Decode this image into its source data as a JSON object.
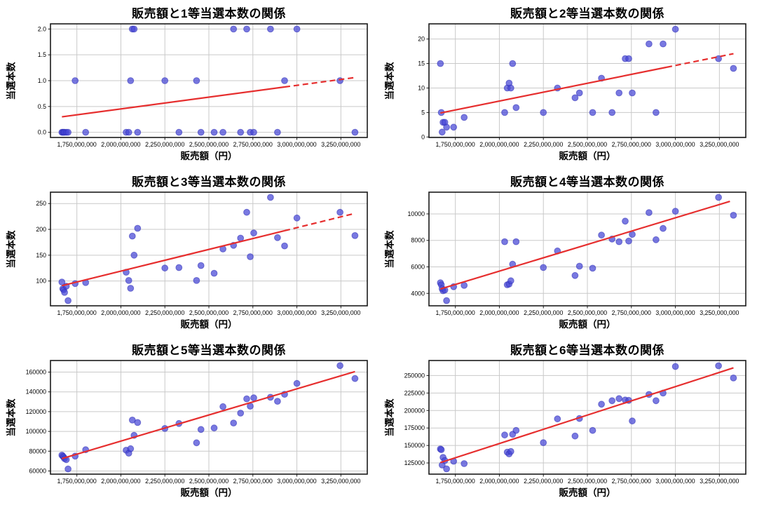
{
  "figure": {
    "rows": 3,
    "columns": 2,
    "background": "#ffffff"
  },
  "style": {
    "point_color": "#4545d6",
    "point_edge_color": "#2c2cb4",
    "point_opacity": 0.72,
    "trend_color": "#e62e2e",
    "grid_color": "#c9c9c9",
    "spine_color": "#1a1a1a",
    "text_color": "#000000"
  },
  "chart_data": [
    {
      "type": "scatter",
      "title": "販売額と1等当選本数の関係",
      "xlabel": "販売額（円）",
      "ylabel": "当選本数",
      "xlim": [
        1600000000,
        3400000000
      ],
      "ylim": [
        -0.1,
        2.1
      ],
      "x_ticks": {
        "values": [
          1750000000,
          2000000000,
          2250000000,
          2500000000,
          2750000000,
          3000000000,
          3250000000
        ],
        "labels": [
          "1,750,000,000",
          "2,000,000,000",
          "2,250,000,000",
          "2,500,000,000",
          "2,750,000,000",
          "3,000,000,000",
          "3,250,000,000"
        ]
      },
      "y_ticks": {
        "values": [
          0.0,
          0.5,
          1.0,
          1.5,
          2.0
        ],
        "labels": [
          "0.0",
          "0.5",
          "1.0",
          "1.5",
          "2.0"
        ]
      },
      "x": [
        1665000000,
        1670000000,
        1675000000,
        1680000000,
        1690000000,
        1700000000,
        1740000000,
        1800000000,
        2030000000,
        2045000000,
        2055000000,
        2065000000,
        2075000000,
        2095000000,
        2250000000,
        2330000000,
        2430000000,
        2455000000,
        2530000000,
        2580000000,
        2640000000,
        2680000000,
        2715000000,
        2735000000,
        2755000000,
        2850000000,
        2890000000,
        2930000000,
        3000000000,
        3245000000,
        3330000000
      ],
      "y": [
        0,
        0,
        0,
        0,
        0,
        0,
        1,
        0,
        0,
        0,
        1,
        2,
        2,
        0,
        1,
        0,
        1,
        0,
        0,
        0,
        2,
        0,
        2,
        0,
        0,
        2,
        0,
        1,
        2,
        1,
        0
      ],
      "trend": {
        "x1": 1665000000,
        "y1": 0.3,
        "x2": 3330000000,
        "y2": 1.06,
        "dash_from_x": 2930000000
      }
    },
    {
      "type": "scatter",
      "title": "販売額と2等当選本数の関係",
      "xlabel": "販売額（円）",
      "ylabel": "当選本数",
      "xlim": [
        1600000000,
        3400000000
      ],
      "ylim": [
        -0.1,
        23.1
      ],
      "x_ticks": {
        "values": [
          1750000000,
          2000000000,
          2250000000,
          2500000000,
          2750000000,
          3000000000,
          3250000000
        ],
        "labels": [
          "1,750,000,000",
          "2,000,000,000",
          "2,250,000,000",
          "2,500,000,000",
          "2,750,000,000",
          "3,000,000,000",
          "3,250,000,000"
        ]
      },
      "y_ticks": {
        "values": [
          0,
          5,
          10,
          15,
          20
        ],
        "labels": [
          "0",
          "5",
          "10",
          "15",
          "20"
        ]
      },
      "x": [
        1665000000,
        1670000000,
        1675000000,
        1680000000,
        1690000000,
        1700000000,
        1740000000,
        1800000000,
        2030000000,
        2045000000,
        2055000000,
        2065000000,
        2075000000,
        2095000000,
        2250000000,
        2330000000,
        2430000000,
        2455000000,
        2530000000,
        2580000000,
        2640000000,
        2680000000,
        2715000000,
        2735000000,
        2755000000,
        2850000000,
        2890000000,
        2930000000,
        3000000000,
        3245000000,
        3330000000
      ],
      "y": [
        15,
        5,
        1,
        3,
        3,
        2,
        2,
        4,
        5,
        10,
        11,
        10,
        15,
        6,
        5,
        10,
        8,
        9,
        5,
        12,
        5,
        9,
        16,
        16,
        9,
        19,
        5,
        19,
        22,
        16,
        14
      ],
      "trend": {
        "x1": 1665000000,
        "y1": 4.9,
        "x2": 3330000000,
        "y2": 17.0,
        "dash_from_x": 2950000000
      }
    },
    {
      "type": "scatter",
      "title": "販売額と3等当選本数の関係",
      "xlabel": "販売額（円）",
      "ylabel": "当選本数",
      "xlim": [
        1600000000,
        3400000000
      ],
      "ylim": [
        52,
        272
      ],
      "x_ticks": {
        "values": [
          1750000000,
          2000000000,
          2250000000,
          2500000000,
          2750000000,
          3000000000,
          3250000000
        ],
        "labels": [
          "1,750,000,000",
          "2,000,000,000",
          "2,250,000,000",
          "2,500,000,000",
          "2,750,000,000",
          "3,000,000,000",
          "3,250,000,000"
        ]
      },
      "y_ticks": {
        "values": [
          100,
          150,
          200,
          250
        ],
        "labels": [
          "100",
          "150",
          "200",
          "250"
        ]
      },
      "x": [
        1665000000,
        1670000000,
        1675000000,
        1680000000,
        1690000000,
        1700000000,
        1740000000,
        1800000000,
        2030000000,
        2045000000,
        2055000000,
        2065000000,
        2075000000,
        2095000000,
        2250000000,
        2330000000,
        2430000000,
        2455000000,
        2530000000,
        2580000000,
        2640000000,
        2680000000,
        2715000000,
        2735000000,
        2755000000,
        2850000000,
        2890000000,
        2930000000,
        3000000000,
        3245000000,
        3330000000
      ],
      "y": [
        98,
        85,
        83,
        78,
        90,
        62,
        95,
        97,
        117,
        101,
        86,
        187,
        150,
        202,
        125,
        126,
        101,
        130,
        115,
        162,
        169,
        183,
        233,
        147,
        193,
        262,
        184,
        168,
        222,
        233,
        188
      ],
      "trend": {
        "x1": 1665000000,
        "y1": 91,
        "x2": 3330000000,
        "y2": 231,
        "dash_from_x": 2930000000
      }
    },
    {
      "type": "scatter",
      "title": "販売額と4等当選本数の関係",
      "xlabel": "販売額（円）",
      "ylabel": "当選本数",
      "xlim": [
        1600000000,
        3400000000
      ],
      "ylim": [
        3060,
        11640
      ],
      "x_ticks": {
        "values": [
          1750000000,
          2000000000,
          2250000000,
          2500000000,
          2750000000,
          3000000000,
          3250000000
        ],
        "labels": [
          "1,750,000,000",
          "2,000,000,000",
          "2,250,000,000",
          "2,500,000,000",
          "2,750,000,000",
          "3,000,000,000",
          "3,250,000,000"
        ]
      },
      "y_ticks": {
        "values": [
          4000,
          6000,
          8000,
          10000
        ],
        "labels": [
          "4000",
          "6000",
          "8000",
          "10000"
        ]
      },
      "x": [
        1665000000,
        1670000000,
        1675000000,
        1680000000,
        1690000000,
        1700000000,
        1740000000,
        1800000000,
        2030000000,
        2045000000,
        2055000000,
        2065000000,
        2075000000,
        2095000000,
        2250000000,
        2330000000,
        2430000000,
        2455000000,
        2530000000,
        2580000000,
        2640000000,
        2680000000,
        2715000000,
        2735000000,
        2755000000,
        2850000000,
        2890000000,
        2930000000,
        3000000000,
        3245000000,
        3330000000
      ],
      "y": [
        4800,
        4650,
        4350,
        4200,
        4250,
        3450,
        4500,
        4600,
        7900,
        4650,
        4700,
        4950,
        6200,
        7900,
        5950,
        7200,
        5350,
        6050,
        5900,
        8400,
        8100,
        7900,
        9450,
        7950,
        8450,
        10100,
        8050,
        8900,
        10200,
        11250,
        9900
      ],
      "trend": {
        "x1": 1665000000,
        "y1": 4330,
        "x2": 3310000000,
        "y2": 10950
      }
    },
    {
      "type": "scatter",
      "title": "販売額と5等当選本数の関係",
      "xlabel": "販売額（円）",
      "ylabel": "当選本数",
      "xlim": [
        1600000000,
        3400000000
      ],
      "ylim": [
        56800,
        171700
      ],
      "x_ticks": {
        "values": [
          1750000000,
          2000000000,
          2250000000,
          2500000000,
          2750000000,
          3000000000,
          3250000000
        ],
        "labels": [
          "1,750,000,000",
          "2,000,000,000",
          "2,250,000,000",
          "2,500,000,000",
          "2,750,000,000",
          "3,000,000,000",
          "3,250,000,000"
        ]
      },
      "y_ticks": {
        "values": [
          60000,
          80000,
          100000,
          120000,
          140000,
          160000
        ],
        "labels": [
          "60000",
          "80000",
          "100000",
          "120000",
          "140000",
          "160000"
        ]
      },
      "x": [
        1665000000,
        1670000000,
        1675000000,
        1680000000,
        1690000000,
        1700000000,
        1740000000,
        1800000000,
        2030000000,
        2045000000,
        2055000000,
        2065000000,
        2075000000,
        2095000000,
        2250000000,
        2330000000,
        2430000000,
        2455000000,
        2530000000,
        2580000000,
        2640000000,
        2680000000,
        2715000000,
        2735000000,
        2755000000,
        2850000000,
        2890000000,
        2930000000,
        3000000000,
        3245000000,
        3330000000
      ],
      "y": [
        76000,
        75000,
        74000,
        72500,
        71500,
        62000,
        75000,
        81500,
        81000,
        78000,
        82500,
        111500,
        96000,
        109000,
        103000,
        108000,
        88500,
        102000,
        103500,
        125000,
        108500,
        118500,
        133000,
        125500,
        134000,
        134500,
        130500,
        137500,
        148500,
        166500,
        153500
      ],
      "trend": {
        "x1": 1665000000,
        "y1": 72500,
        "x2": 3330000000,
        "y2": 160500
      }
    },
    {
      "type": "scatter",
      "title": "販売額と6等当選本数の関係",
      "xlabel": "販売額（円）",
      "ylabel": "当選本数",
      "xlim": [
        1600000000,
        3400000000
      ],
      "ylim": [
        109000,
        271500
      ],
      "x_ticks": {
        "values": [
          1750000000,
          2000000000,
          2250000000,
          2500000000,
          2750000000,
          3000000000,
          3250000000
        ],
        "labels": [
          "1,750,000,000",
          "2,000,000,000",
          "2,250,000,000",
          "2,500,000,000",
          "2,750,000,000",
          "3,000,000,000",
          "3,250,000,000"
        ]
      },
      "y_ticks": {
        "values": [
          125000,
          150000,
          175000,
          200000,
          225000,
          250000
        ],
        "labels": [
          "125000",
          "150000",
          "175000",
          "200000",
          "225000",
          "250000"
        ]
      },
      "x": [
        1665000000,
        1670000000,
        1675000000,
        1680000000,
        1690000000,
        1700000000,
        1740000000,
        1800000000,
        2030000000,
        2045000000,
        2055000000,
        2065000000,
        2075000000,
        2095000000,
        2250000000,
        2330000000,
        2430000000,
        2455000000,
        2530000000,
        2580000000,
        2640000000,
        2680000000,
        2715000000,
        2735000000,
        2755000000,
        2850000000,
        2890000000,
        2930000000,
        3000000000,
        3245000000,
        3330000000
      ],
      "y": [
        145000,
        144000,
        122000,
        133000,
        128500,
        116500,
        127500,
        124000,
        165000,
        140500,
        138000,
        141500,
        166000,
        171500,
        154000,
        188000,
        163500,
        188500,
        171500,
        209000,
        214000,
        217000,
        215000,
        214500,
        185000,
        223000,
        214000,
        225000,
        263000,
        264000,
        246500
      ],
      "trend": {
        "x1": 1665000000,
        "y1": 125500,
        "x2": 3330000000,
        "y2": 261000
      }
    }
  ]
}
